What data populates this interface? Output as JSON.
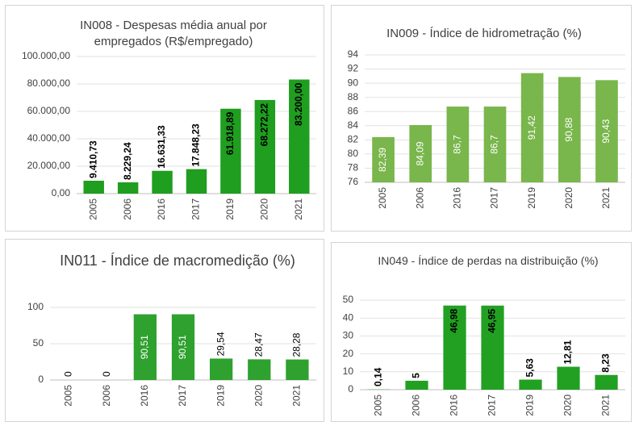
{
  "chart_data": [
    {
      "type": "bar",
      "title": "IN008 - Despesas média anual por empregados (R$/empregado)",
      "categories": [
        "2005",
        "2006",
        "2016",
        "2017",
        "2019",
        "2020",
        "2021"
      ],
      "values": [
        9410.73,
        8229.24,
        16631.33,
        17848.23,
        61918.89,
        68272.22,
        83200.0
      ],
      "value_labels": [
        "9.410,73",
        "8.229,24",
        "16.631,33",
        "17.848,23",
        "61.918,89",
        "68.272,22",
        "83.200,00"
      ],
      "color": "#1f9e1f",
      "ylim": [
        0,
        100000
      ],
      "yticks": [
        {
          "value": 0,
          "label": "0,00"
        },
        {
          "value": 20000,
          "label": "20.000,00"
        },
        {
          "value": 40000,
          "label": "40.000,00"
        },
        {
          "value": 60000,
          "label": "60.000,00"
        },
        {
          "value": 80000,
          "label": "80.000,00"
        },
        {
          "value": 100000,
          "label": "100.000,00"
        }
      ],
      "grid": true
    },
    {
      "type": "bar",
      "title": "IN009 - Índice de hidrometração (%)",
      "categories": [
        "2005",
        "2006",
        "2016",
        "2017",
        "2019",
        "2020",
        "2021"
      ],
      "values": [
        82.39,
        84.09,
        86.7,
        86.7,
        91.42,
        90.88,
        90.43
      ],
      "value_labels": [
        "82,39",
        "84,09",
        "86,7",
        "86,7",
        "91,42",
        "90,88",
        "90,43"
      ],
      "color": "#79b64c",
      "ylim": [
        76,
        94
      ],
      "yticks": [
        76,
        78,
        80,
        82,
        84,
        86,
        88,
        90,
        92,
        94
      ],
      "grid": true
    },
    {
      "type": "bar",
      "title": "IN011 - Índice de macromedição (%)",
      "categories": [
        "2005",
        "2006",
        "2016",
        "2017",
        "2019",
        "2020",
        "2021"
      ],
      "values": [
        0,
        0,
        90.51,
        90.51,
        29.54,
        28.47,
        28.28
      ],
      "value_labels": [
        "0",
        "0",
        "90,51",
        "90,51",
        "29,54",
        "28,47",
        "28,28"
      ],
      "color": "#2ea12e",
      "ylim": [
        0,
        110
      ],
      "yticks": [
        0,
        50,
        100
      ],
      "grid": true
    },
    {
      "type": "bar",
      "title": "IN049 - Índice de perdas na distribuição (%)",
      "categories": [
        "2005",
        "2006",
        "2016",
        "2017",
        "2019",
        "2020",
        "2021"
      ],
      "values": [
        0.14,
        5,
        46.98,
        46.95,
        5.63,
        12.81,
        8.23
      ],
      "value_labels": [
        "0,14",
        "5",
        "46,98",
        "46,95",
        "5,63",
        "12,81",
        "8,23"
      ],
      "color": "#22a022",
      "ylim": [
        0,
        50
      ],
      "yticks": [
        0,
        10,
        20,
        30,
        40,
        50
      ],
      "grid": true
    }
  ]
}
